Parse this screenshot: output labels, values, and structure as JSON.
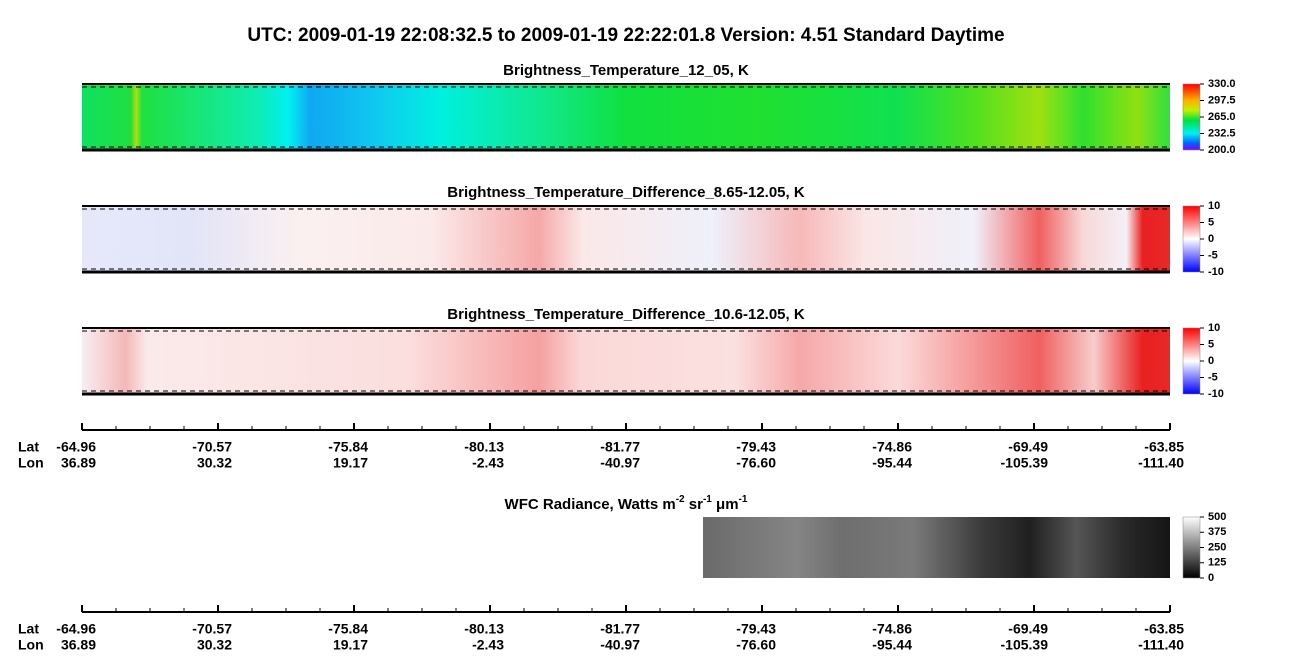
{
  "title": "UTC:  2009-01-19   22:08:32.5  to  2009-01-19   22:22:01.8    Version: 4.51  Standard Daytime",
  "panels": [
    {
      "title": "Brightness_Temperature_12_05, K",
      "clim": [
        200,
        330
      ],
      "ticks": [
        {
          "value": 330,
          "label": "330.0"
        },
        {
          "value": 297.5,
          "label": "297.5"
        },
        {
          "value": 265,
          "label": "265.0"
        },
        {
          "value": 232.5,
          "label": "232.5"
        },
        {
          "value": 200,
          "label": "200.0"
        }
      ]
    },
    {
      "title": "Brightness_Temperature_Difference_8.65-12.05, K",
      "clim": [
        -10,
        10
      ],
      "ticks": [
        10,
        5,
        0,
        -5,
        -10
      ]
    },
    {
      "title": "Brightness_Temperature_Difference_10.6-12.05, K",
      "clim": [
        -10,
        10
      ],
      "ticks": [
        10,
        5,
        0,
        -5,
        -10
      ]
    },
    {
      "title_parts": [
        "WFC Radiance, Watts m",
        "-2",
        " sr",
        "-1",
        " μm",
        "-1"
      ],
      "clim": [
        0,
        500
      ],
      "ticks": [
        500,
        375,
        250,
        125,
        0
      ]
    }
  ],
  "axes": [
    {
      "lat_label": "Lat",
      "lon_label": "Lon",
      "lat": [
        "-64.96",
        "-70.57",
        "-75.84",
        "-80.13",
        "-81.77",
        "-79.43",
        "-74.86",
        "-69.49",
        "-63.85"
      ],
      "lon": [
        "36.89",
        "30.32",
        "19.17",
        "-2.43",
        "-40.97",
        "-76.60",
        "-95.44",
        "-105.39",
        "-111.40"
      ]
    },
    {
      "lat_label": "Lat",
      "lon_label": "Lon",
      "lat": [
        "-64.96",
        "-70.57",
        "-75.84",
        "-80.13",
        "-81.77",
        "-79.43",
        "-74.86",
        "-69.49",
        "-63.85"
      ],
      "lon": [
        "36.89",
        "30.32",
        "19.17",
        "-2.43",
        "-40.97",
        "-76.60",
        "-95.44",
        "-105.39",
        "-111.40"
      ]
    }
  ]
}
